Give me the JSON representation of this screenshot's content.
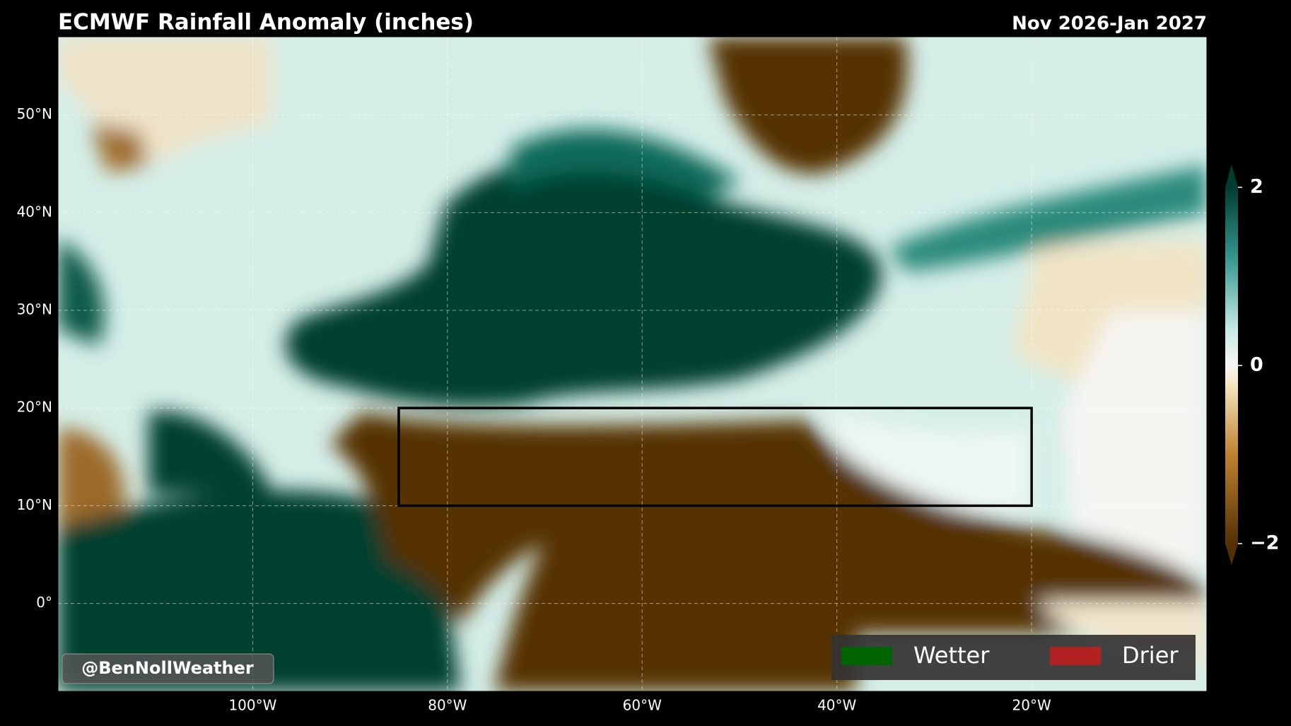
{
  "map": {
    "title": "ECMWF Rainfall Anomaly (inches)",
    "period": "Nov 2026-Jan 2027",
    "lon_extent": [
      -120,
      -2
    ],
    "lat_extent": [
      -9,
      58
    ],
    "lat_ticks": [
      {
        "value": 0,
        "label": "0°"
      },
      {
        "value": 10,
        "label": "10°N"
      },
      {
        "value": 20,
        "label": "20°N"
      },
      {
        "value": 30,
        "label": "30°N"
      },
      {
        "value": 40,
        "label": "40°N"
      },
      {
        "value": 50,
        "label": "50°N"
      }
    ],
    "lon_ticks": [
      {
        "value": -100,
        "label": "100°W"
      },
      {
        "value": -80,
        "label": "80°W"
      },
      {
        "value": -60,
        "label": "60°W"
      },
      {
        "value": -40,
        "label": "40°W"
      },
      {
        "value": -20,
        "label": "20°W"
      }
    ],
    "region_box": {
      "lon": [
        -85,
        -20
      ],
      "lat": [
        10,
        20
      ]
    },
    "colorbar": {
      "lim": [
        -2,
        2
      ],
      "ticks": [
        2,
        0,
        {
          "value": -2,
          "label": "−2"
        }
      ]
    },
    "legend": [
      {
        "name": "Wetter",
        "color": "#006400"
      },
      {
        "name": "Drier",
        "color": "#b22222"
      }
    ],
    "watermark": "@BenNollWeather"
  }
}
